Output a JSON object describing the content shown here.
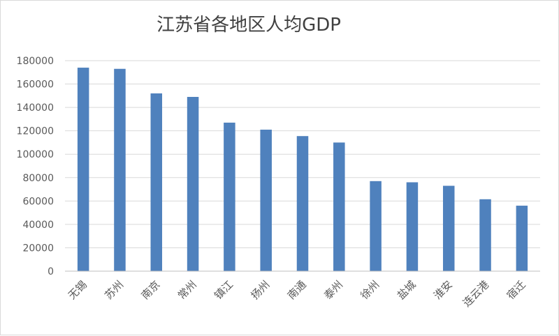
{
  "chart_data": {
    "type": "bar",
    "title": "江苏省各地区人均GDP",
    "xlabel": "",
    "ylabel": "",
    "categories": [
      "无锡",
      "苏州",
      "南京",
      "常州",
      "镇江",
      "扬州",
      "南通",
      "泰州",
      "徐州",
      "盐城",
      "淮安",
      "连云港",
      "宿迁"
    ],
    "values": [
      174000,
      173000,
      152000,
      149000,
      127000,
      121000,
      115500,
      110000,
      77000,
      76000,
      73000,
      61500,
      56000
    ],
    "ylim": [
      0,
      180000
    ],
    "yticks": [
      0,
      20000,
      40000,
      60000,
      80000,
      100000,
      120000,
      140000,
      160000,
      180000
    ],
    "grid": true,
    "legend": "none",
    "colors": {
      "bar": "#4f81bd",
      "grid": "#d9d9d9",
      "axis": "#bfbfbf",
      "text": "#595959"
    }
  }
}
